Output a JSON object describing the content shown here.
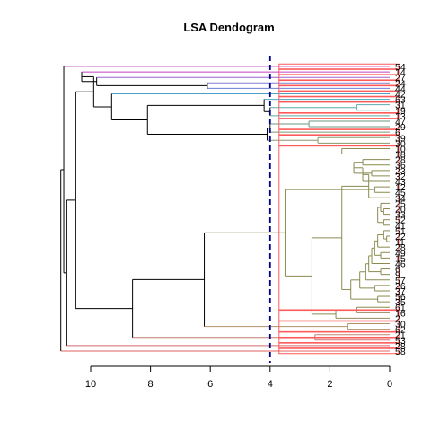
{
  "chart_data": {
    "type": "dendrogram",
    "title": "LSA Dendogram",
    "xlabel": "",
    "ylabel": "",
    "orientation": "horizontal",
    "xlim": [
      11,
      0
    ],
    "x_reversed": true,
    "x_ticks": [
      10,
      8,
      6,
      4,
      2,
      0
    ],
    "x_tick_labels": [
      "10",
      "8",
      "6",
      "4",
      "2",
      "0"
    ],
    "cut_height": 4,
    "cut_line": {
      "color": "#00008b",
      "style": "dashed"
    },
    "cluster_box_color": "#ff5a5a",
    "leaves": [
      "54",
      "14",
      "27",
      "24",
      "44",
      "42",
      "63",
      "31",
      "19",
      "13",
      "47",
      "29",
      "6",
      "39",
      "30",
      "10",
      "18",
      "28",
      "36",
      "23",
      "32",
      "43",
      "12",
      "45",
      "34",
      "25",
      "20",
      "33",
      "52",
      "41",
      "51",
      "22",
      "11",
      "28",
      "49",
      "15",
      "46",
      "6",
      "9",
      "57",
      "26",
      "37",
      "56",
      "35",
      "61",
      "16",
      "2",
      "30",
      "62",
      "21",
      "53",
      "28",
      "58"
    ],
    "clusters": [
      {
        "leaves": [
          "54"
        ],
        "color": "#cc66cc"
      },
      {
        "leaves": [
          "14"
        ],
        "color": "#c040c0"
      },
      {
        "leaves": [
          "27"
        ],
        "color": "#9966cc"
      },
      {
        "leaves": [
          "24"
        ],
        "color": "#8080d0"
      },
      {
        "leaves": [
          "44"
        ],
        "color": "#6b7fd4"
      },
      {
        "leaves": [
          "42"
        ],
        "color": "#4aa0c8"
      },
      {
        "leaves": [
          "63"
        ],
        "color": "#4aa8c0"
      },
      {
        "leaves": [
          "31",
          "19"
        ],
        "color": "#5aaab0"
      },
      {
        "leaves": [
          "13"
        ],
        "color": "#60a8a0"
      },
      {
        "leaves": [
          "47",
          "29"
        ],
        "color": "#6a9a80"
      },
      {
        "leaves": [
          "6"
        ],
        "color": "#7a9870"
      },
      {
        "leaves": [
          "39",
          "30"
        ],
        "color": "#8a9868"
      },
      {
        "leaves": [
          "10",
          "18",
          "28",
          "36",
          "23",
          "32",
          "43",
          "12",
          "45",
          "34",
          "25",
          "20",
          "33",
          "52",
          "41",
          "51",
          "22",
          "11",
          "28",
          "49",
          "15",
          "46",
          "6",
          "9",
          "57",
          "26",
          "37",
          "56",
          "35",
          "61"
        ],
        "color": "#8a8a50"
      },
      {
        "leaves": [
          "16",
          "2"
        ],
        "color": "#9a8860"
      },
      {
        "leaves": [
          "30",
          "62"
        ],
        "color": "#b09068"
      },
      {
        "leaves": [
          "21"
        ],
        "color": "#c08070"
      },
      {
        "leaves": [
          "53"
        ],
        "color": "#d07070"
      },
      {
        "leaves": [
          "28"
        ],
        "color": "#d86a6a"
      },
      {
        "leaves": [
          "58"
        ],
        "color": "#e06060"
      }
    ],
    "merges": [
      {
        "a": "L:7",
        "b": "L:8",
        "h": 1.1
      },
      {
        "a": "L:10",
        "b": "L:11",
        "h": 2.7
      },
      {
        "a": "L:13",
        "b": "L:14",
        "h": 2.4
      },
      {
        "a": "L:15",
        "b": "L:16",
        "h": 1.6
      },
      {
        "a": "L:17",
        "b": "L:18",
        "h": 0.9
      },
      {
        "a": "L:19",
        "b": "L:20",
        "h": 0.6
      },
      {
        "a": "L:22",
        "b": "L:23",
        "h": 0.5
      },
      {
        "a": "L:26",
        "b": "L:27",
        "h": 0.2
      },
      {
        "a": "L:28",
        "b": "L:29",
        "h": 0.2
      },
      {
        "a": "L:31",
        "b": "L:32",
        "h": 0.1
      },
      {
        "a": "L:34",
        "b": "L:35",
        "h": 0.3
      },
      {
        "a": "L:37",
        "b": "L:38",
        "h": 0.3
      },
      {
        "a": "L:40",
        "b": "L:41",
        "h": 0.5
      },
      {
        "a": "L:42",
        "b": "L:43",
        "h": 0.4
      },
      {
        "a": "L:47",
        "b": "L:48",
        "h": 1.4
      },
      {
        "a": "L:49",
        "b": "L:50",
        "h": 2.5
      },
      {
        "a": "M:4",
        "b": "M:5",
        "h": 1.2
      },
      {
        "a": "M:16",
        "b": "L:21",
        "h": 0.9
      },
      {
        "a": "M:17",
        "b": "L:24",
        "h": 0.7
      },
      {
        "a": "L:25",
        "b": "M:7",
        "h": 0.3
      },
      {
        "a": "M:19",
        "b": "M:8",
        "h": 0.4
      },
      {
        "a": "L:30",
        "b": "M:9",
        "h": 0.2
      },
      {
        "a": "M:21",
        "b": "L:33",
        "h": 0.4
      },
      {
        "a": "M:22",
        "b": "M:10",
        "h": 0.5
      },
      {
        "a": "M:23",
        "b": "L:36",
        "h": 0.6
      },
      {
        "a": "M:24",
        "b": "M:11",
        "h": 0.7
      },
      {
        "a": "M:25",
        "b": "L:39",
        "h": 0.8
      },
      {
        "a": "M:26",
        "b": "M:12",
        "h": 1.0
      },
      {
        "a": "M:27",
        "b": "M:13",
        "h": 1.3
      },
      {
        "a": "M:18",
        "b": "M:28",
        "h": 1.6
      },
      {
        "a": "L:44",
        "b": "L:45",
        "h": 1.1
      },
      {
        "a": "M:30",
        "b": "L:46",
        "h": 1.8
      },
      {
        "a": "M:29",
        "b": "M:31",
        "h": 2.6
      },
      {
        "a": "M:6",
        "b": "M:32",
        "h": 3.5
      },
      {
        "a": "M:33",
        "b": "M:14",
        "h": 6.2
      },
      {
        "a": "M:34",
        "b": "M:15",
        "h": 8.6
      },
      {
        "a": "M:0",
        "b": "L:9",
        "h": 4.0
      },
      {
        "a": "L:6",
        "b": "M:36",
        "h": 4.2
      },
      {
        "a": "L:12",
        "b": "M:1",
        "h": 4.0
      },
      {
        "a": "M:38",
        "b": "M:2",
        "h": 4.1
      },
      {
        "a": "M:37",
        "b": "M:39",
        "h": 8.1
      },
      {
        "a": "L:5",
        "b": "M:40",
        "h": 9.3
      },
      {
        "a": "L:3",
        "b": "L:4",
        "h": 6.1
      },
      {
        "a": "L:2",
        "b": "M:42",
        "h": 9.8
      },
      {
        "a": "M:43",
        "b": "L:1",
        "h": 10.3
      },
      {
        "a": "M:44",
        "b": "M:41",
        "h": 9.9
      },
      {
        "a": "M:45",
        "b": "M:35",
        "h": 10.5
      },
      {
        "a": "M:46",
        "b": "L:51",
        "h": 10.8
      },
      {
        "a": "L:0",
        "b": "M:47",
        "h": 10.9
      },
      {
        "a": "M:48",
        "b": "L:52",
        "h": 11.0
      }
    ]
  }
}
